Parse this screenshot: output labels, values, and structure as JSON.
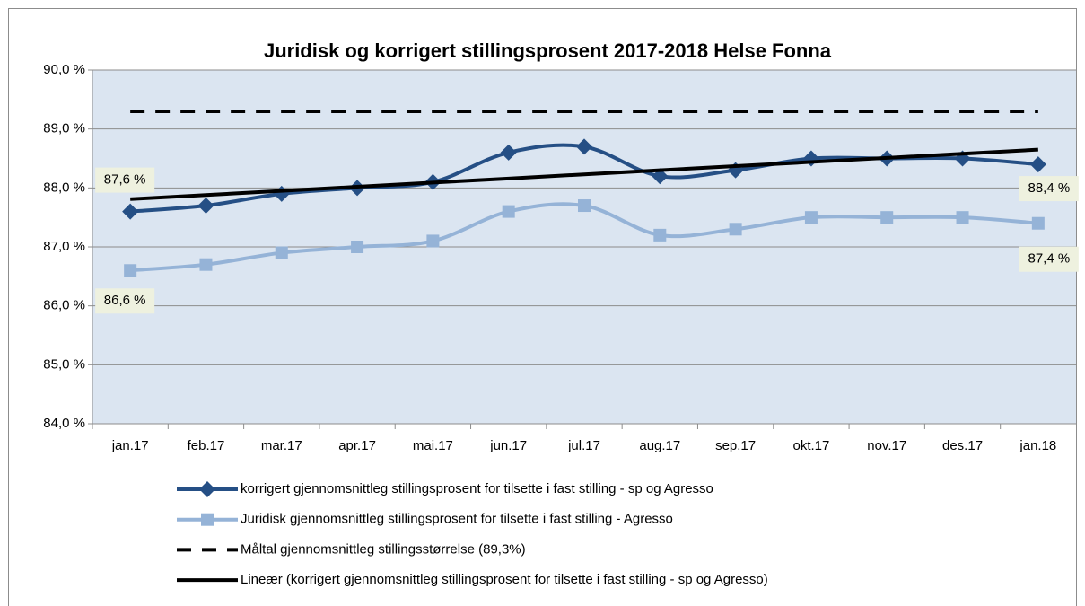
{
  "chart_data": {
    "type": "line",
    "title": "Juridisk og korrigert stillingsprosent 2017-2018 Helse Fonna",
    "categories": [
      "jan.17",
      "feb.17",
      "mar.17",
      "apr.17",
      "mai.17",
      "jun.17",
      "jul.17",
      "aug.17",
      "sep.17",
      "okt.17",
      "nov.17",
      "des.17",
      "jan.18"
    ],
    "ylim": [
      84,
      90
    ],
    "yticks": [
      {
        "value": 84,
        "label": "84,0 %"
      },
      {
        "value": 85,
        "label": "85,0 %"
      },
      {
        "value": 86,
        "label": "86,0 %"
      },
      {
        "value": 87,
        "label": "87,0 %"
      },
      {
        "value": 88,
        "label": "88,0 %"
      },
      {
        "value": 89,
        "label": "89,0 %"
      },
      {
        "value": 90,
        "label": "90,0 %"
      }
    ],
    "grid": true,
    "legend": "bottom",
    "series": [
      {
        "name": "korrigert gjennomsnittleg stillingsprosent for tilsette i fast stilling  - sp og Agresso",
        "color": "#254f85",
        "marker": "diamond",
        "smooth": true,
        "values": [
          87.6,
          87.7,
          87.9,
          88.0,
          88.1,
          88.6,
          88.7,
          88.2,
          88.3,
          88.5,
          88.5,
          88.5,
          88.4
        ],
        "value_labels": [
          "87,6 %",
          null,
          null,
          null,
          null,
          null,
          null,
          null,
          null,
          null,
          null,
          null,
          "88,4 %"
        ]
      },
      {
        "name": "Juridisk gjennomsnittleg stillingsprosent for tilsette i fast stilling - Agresso",
        "color": "#95b3d7",
        "marker": "square",
        "smooth": true,
        "values": [
          86.6,
          86.7,
          86.9,
          87.0,
          87.1,
          87.6,
          87.7,
          87.2,
          87.3,
          87.5,
          87.5,
          87.5,
          87.4
        ],
        "value_labels": [
          "86,6 %",
          null,
          null,
          null,
          null,
          null,
          null,
          null,
          null,
          null,
          null,
          null,
          "87,4 %"
        ]
      },
      {
        "name": "Måltal gjennomsnittleg stillingsstørrelse (89,3%)",
        "color": "#000000",
        "dashed": true,
        "values": [
          89.3,
          89.3,
          89.3,
          89.3,
          89.3,
          89.3,
          89.3,
          89.3,
          89.3,
          89.3,
          89.3,
          89.3,
          89.3
        ]
      },
      {
        "name": "Lineær (korrigert gjennomsnittleg stillingsprosent for tilsette i fast stilling  - sp og Agresso)",
        "color": "#000000",
        "values": [
          87.81,
          87.88,
          87.95,
          88.02,
          88.09,
          88.16,
          88.23,
          88.3,
          88.37,
          88.44,
          88.51,
          88.58,
          88.65
        ]
      }
    ]
  }
}
